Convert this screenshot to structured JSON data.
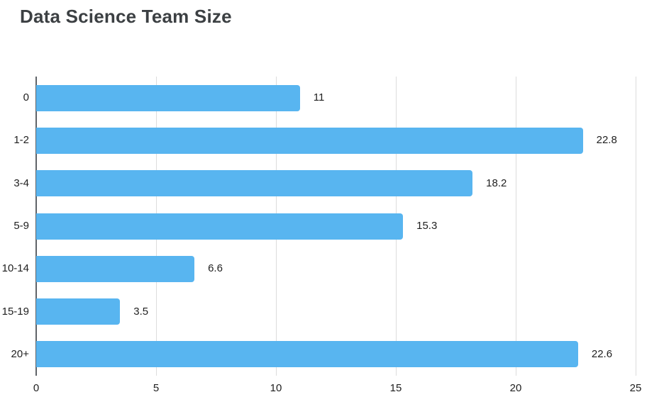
{
  "chart_data": {
    "type": "bar",
    "orientation": "horizontal",
    "title": "Data Science Team Size",
    "categories": [
      "0",
      "1-2",
      "3-4",
      "5-9",
      "10-14",
      "15-19",
      "20+"
    ],
    "values": [
      11,
      22.8,
      18.2,
      15.3,
      6.6,
      3.5,
      22.6
    ],
    "value_labels": [
      "11",
      "22.8",
      "18.2",
      "15.3",
      "6.6",
      "3.5",
      "22.6"
    ],
    "xlabel": "",
    "ylabel": "",
    "xlim": [
      0,
      25
    ],
    "x_ticks": [
      0,
      5,
      10,
      15,
      20,
      25
    ],
    "x_tick_labels": [
      "0",
      "5",
      "10",
      "15",
      "20",
      "25"
    ],
    "grid": "vertical gridlines on",
    "legend": "none",
    "colors": {
      "bar": "#58b5f0",
      "gridline": "#dcdcdc",
      "axis_line": "#5f6368",
      "title_text": "#3c4043",
      "label_text": "#1f1f1f"
    }
  }
}
